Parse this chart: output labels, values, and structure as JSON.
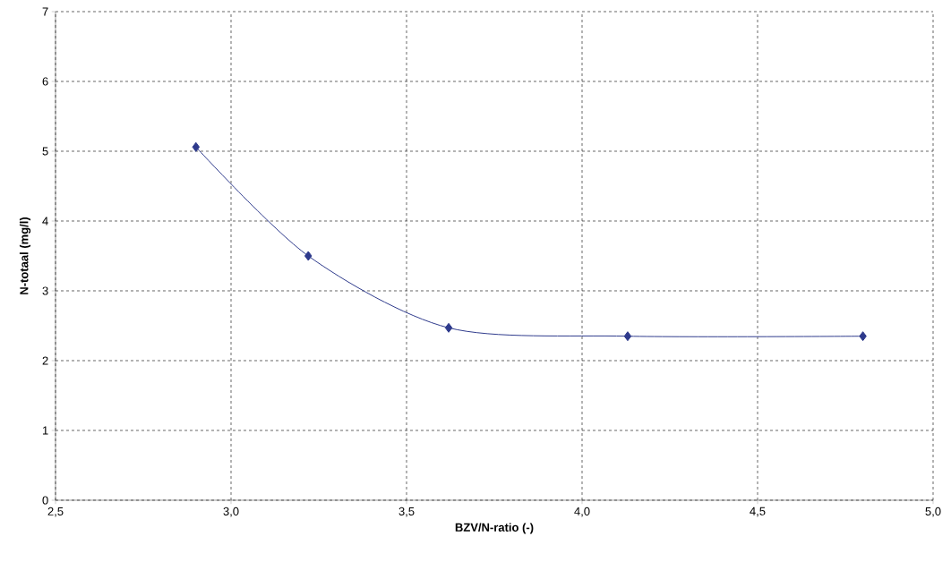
{
  "chart_data": {
    "type": "line",
    "xlabel": "BZV/N-ratio (-)",
    "ylabel": "N-totaal (mg/l)",
    "x": [
      2.9,
      3.22,
      3.62,
      4.13,
      4.8
    ],
    "series": [
      {
        "color": "#2e3a8c",
        "values": [
          5.06,
          3.5,
          2.47,
          2.35,
          2.35
        ]
      }
    ],
    "xlim": [
      2.5,
      5.0
    ],
    "xticks": [
      {
        "value": 2.5,
        "label": "2,5"
      },
      {
        "value": 3.0,
        "label": "3,0"
      },
      {
        "value": 3.5,
        "label": "3,5"
      },
      {
        "value": 4.0,
        "label": "4,0"
      },
      {
        "value": 4.5,
        "label": "4,5"
      },
      {
        "value": 5.0,
        "label": "5,0"
      }
    ],
    "ylim": [
      0,
      7
    ],
    "yticks": [
      0,
      1,
      2,
      3,
      4,
      5,
      6,
      7
    ],
    "grid": true,
    "marker": "diamond",
    "line_style": "solid"
  }
}
